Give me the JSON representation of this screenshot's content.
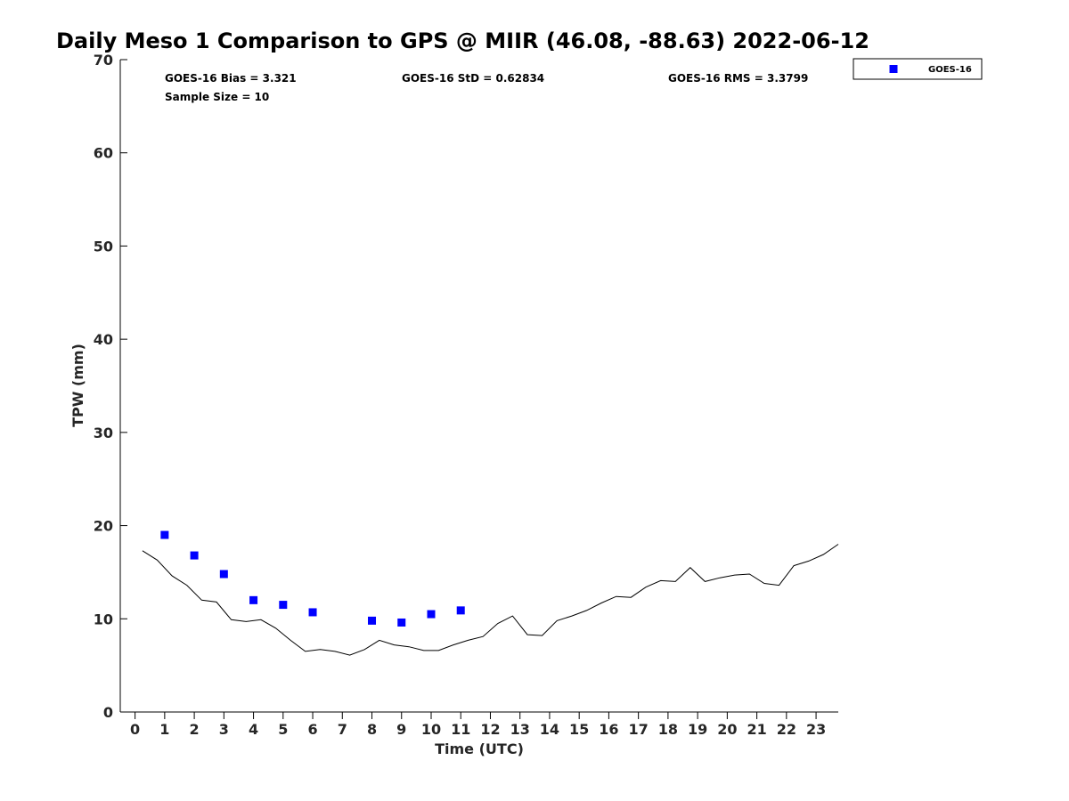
{
  "chart_data": {
    "type": "scatter",
    "title": "Daily Meso 1 Comparison to GPS @ MIIR (46.08, -88.63) 2022-06-12",
    "xlabel": "Time (UTC)",
    "ylabel": "TPW (mm)",
    "xlim": [
      -0.5,
      23.75
    ],
    "ylim": [
      0,
      70
    ],
    "x_ticks": [
      0,
      1,
      2,
      3,
      4,
      5,
      6,
      7,
      8,
      9,
      10,
      11,
      12,
      13,
      14,
      15,
      16,
      17,
      18,
      19,
      20,
      21,
      22,
      23
    ],
    "y_ticks": [
      0,
      10,
      20,
      30,
      40,
      50,
      60,
      70
    ],
    "grid": false,
    "legend_position": "top-right (outside plot)",
    "stats": {
      "bias": "GOES-16 Bias = 3.321",
      "std": "GOES-16 StD = 0.62834",
      "rms": "GOES-16 RMS = 3.3799",
      "sample": "Sample Size = 10"
    },
    "series": [
      {
        "name": "GOES-16",
        "kind": "markers",
        "marker": "square",
        "color": "#0000ff",
        "x": [
          1,
          2,
          3,
          4,
          5,
          6,
          8,
          9,
          10,
          11
        ],
        "y": [
          19.0,
          16.8,
          14.8,
          12.0,
          11.5,
          10.7,
          9.8,
          9.6,
          10.5,
          10.9
        ]
      },
      {
        "kind": "line",
        "color": "#000000",
        "x": [
          0.25,
          0.75,
          1.25,
          1.75,
          2.25,
          2.75,
          3.25,
          3.75,
          4.25,
          4.75,
          5.25,
          5.75,
          6.25,
          6.75,
          7.25,
          7.75,
          8.25,
          8.75,
          9.25,
          9.75,
          10.25,
          10.75,
          11.25,
          11.75,
          12.25,
          12.75,
          13.25,
          13.75,
          14.25,
          14.75,
          15.25,
          15.75,
          16.25,
          16.75,
          17.25,
          17.75,
          18.25,
          18.75,
          19.25,
          19.75,
          20.25,
          20.75,
          21.25,
          21.75,
          22.25,
          22.75,
          23.25,
          23.75
        ],
        "y": [
          17.3,
          16.3,
          14.6,
          13.6,
          12.0,
          11.8,
          9.9,
          9.7,
          9.9,
          9.0,
          7.7,
          6.5,
          6.7,
          6.5,
          6.1,
          6.7,
          7.7,
          7.2,
          7.0,
          6.6,
          6.6,
          7.2,
          7.7,
          8.1,
          9.5,
          10.3,
          8.3,
          8.2,
          9.8,
          10.3,
          10.9,
          11.7,
          12.4,
          12.3,
          13.4,
          14.1,
          14.0,
          15.5,
          14.0,
          14.4,
          14.7,
          14.8,
          13.8,
          13.6,
          15.7,
          16.2,
          16.9,
          18.0
        ]
      }
    ]
  }
}
